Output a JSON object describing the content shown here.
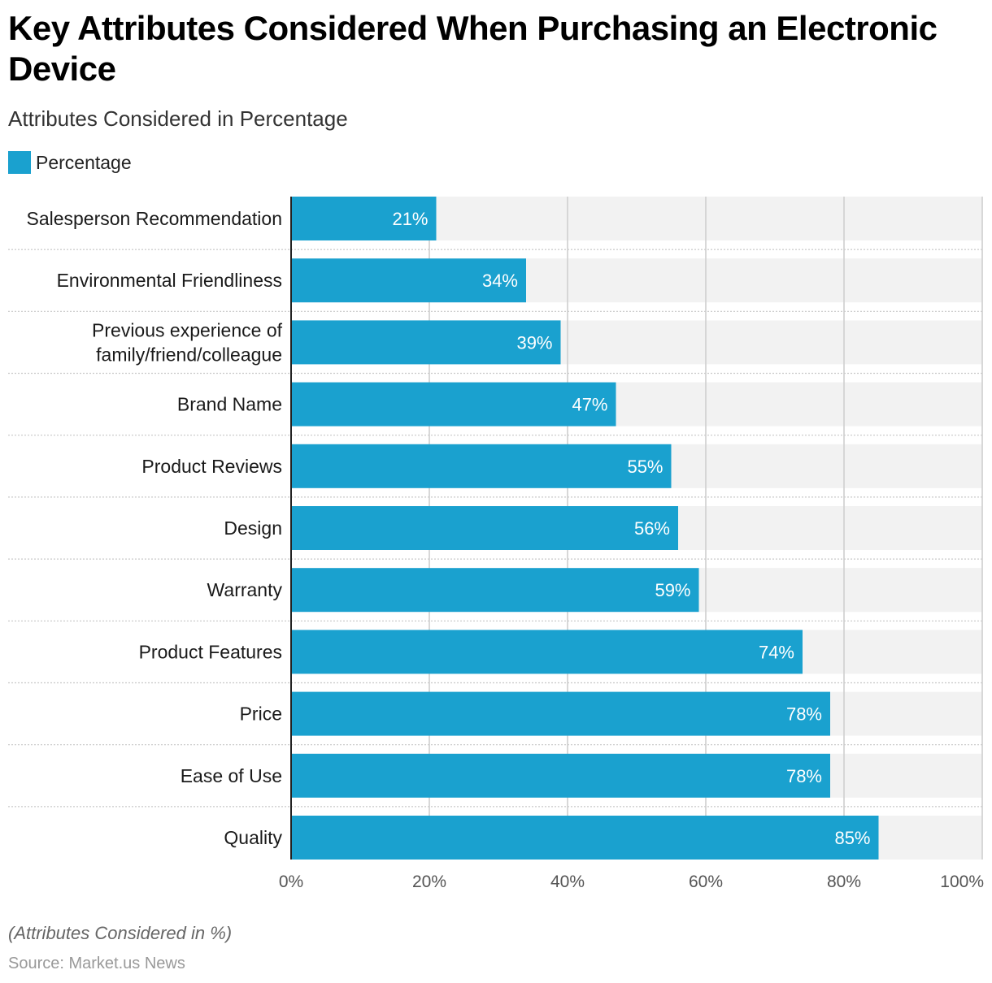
{
  "title": "Key Attributes Considered When Purchasing an Electronic Device",
  "subtitle": "Attributes Considered in Percentage",
  "legend": {
    "label": "Percentage",
    "color": "#1aa1cf"
  },
  "footnote": "(Attributes Considered in %)",
  "source": "Source: Market.us News",
  "colors": {
    "bar": "#1aa1cf",
    "track": "#f2f2f2",
    "grid": "#cccccc",
    "axis": "#222222",
    "separator": "#c8c8c8"
  },
  "chart_data": {
    "type": "bar",
    "orientation": "horizontal",
    "title": "Key Attributes Considered When Purchasing an Electronic Device",
    "subtitle": "Attributes Considered in Percentage",
    "xlabel": "",
    "ylabel": "",
    "xlim": [
      0,
      100
    ],
    "ticks": [
      0,
      20,
      40,
      60,
      80,
      100
    ],
    "tick_labels": [
      "0%",
      "20%",
      "40%",
      "60%",
      "80%",
      "100%"
    ],
    "grid": true,
    "legend_position": "top-left",
    "categories": [
      [
        "Salesperson Recommendation"
      ],
      [
        "Environmental Friendliness"
      ],
      [
        "Previous experience of",
        "family/friend/colleague"
      ],
      [
        "Brand Name"
      ],
      [
        "Product Reviews"
      ],
      [
        "Design"
      ],
      [
        "Warranty"
      ],
      [
        "Product Features"
      ],
      [
        "Price"
      ],
      [
        "Ease of Use"
      ],
      [
        "Quality"
      ]
    ],
    "series": [
      {
        "name": "Percentage",
        "values": [
          21,
          34,
          39,
          47,
          55,
          56,
          59,
          74,
          78,
          78,
          85
        ],
        "labels": [
          "21%",
          "34%",
          "39%",
          "47%",
          "55%",
          "56%",
          "59%",
          "74%",
          "78%",
          "78%",
          "85%"
        ]
      }
    ]
  }
}
